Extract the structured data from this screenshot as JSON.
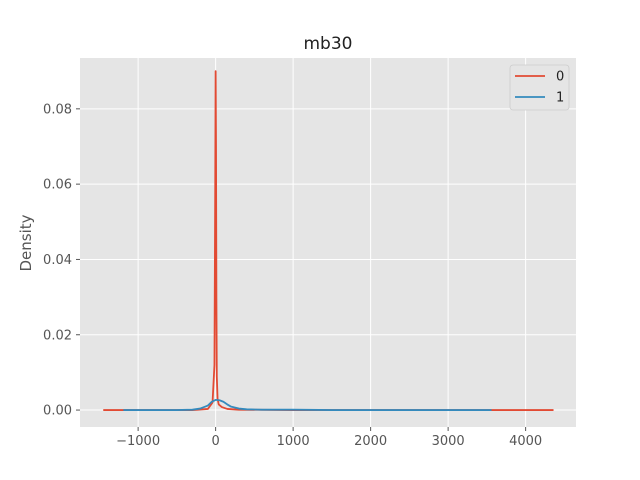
{
  "chart_data": {
    "type": "line",
    "title": "mb30",
    "xlabel": "",
    "ylabel": "Density",
    "xlim": [
      -1750,
      4650
    ],
    "ylim": [
      -0.0045,
      0.0935
    ],
    "xticks": [
      -1000,
      0,
      1000,
      2000,
      3000,
      4000
    ],
    "xtick_labels": [
      "−1000",
      "0",
      "1000",
      "2000",
      "3000",
      "4000"
    ],
    "yticks": [
      0.0,
      0.02,
      0.04,
      0.06,
      0.08
    ],
    "ytick_labels": [
      "0.00",
      "0.02",
      "0.04",
      "0.06",
      "0.08"
    ],
    "grid": true,
    "legend_position": "top-right",
    "series": [
      {
        "name": "0",
        "color": "#E24A33",
        "x": [
          -1450,
          -300,
          -100,
          -40,
          -15,
          -5,
          0,
          5,
          10,
          15,
          25,
          40,
          80,
          150,
          300,
          1000,
          2000,
          3000,
          4360
        ],
        "y": [
          0.0,
          0.0,
          0.0003,
          0.002,
          0.012,
          0.06,
          0.09,
          0.07,
          0.03,
          0.009,
          0.003,
          0.0015,
          0.0008,
          0.0003,
          0.0001,
          0.0,
          0.0,
          0.0,
          0.0
        ]
      },
      {
        "name": "1",
        "color": "#348ABD",
        "x": [
          -1190,
          -500,
          -300,
          -200,
          -100,
          -50,
          0,
          50,
          100,
          150,
          200,
          300,
          400,
          600,
          1000,
          1500,
          2000,
          3000,
          3560
        ],
        "y": [
          0.0,
          0.0,
          0.0001,
          0.0004,
          0.0012,
          0.0022,
          0.0027,
          0.0026,
          0.0022,
          0.0015,
          0.0009,
          0.0004,
          0.0002,
          0.0001,
          0.0001,
          0.0,
          0.0,
          0.0,
          0.0
        ]
      }
    ]
  }
}
